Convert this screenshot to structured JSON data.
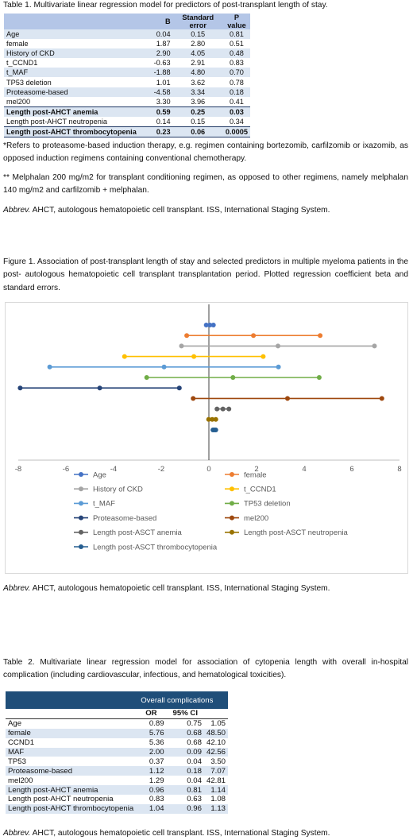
{
  "table1": {
    "caption": "Table 1. Multivariate linear regression model for predictors of post-transplant length of stay.",
    "headers": [
      "",
      "B",
      "Standard error",
      "P value"
    ],
    "rows": [
      [
        "Age",
        "0.04",
        "0.15",
        "0.81"
      ],
      [
        "female",
        "1.87",
        "2.80",
        "0.51"
      ],
      [
        "History of CKD",
        "2.90",
        "4.05",
        "0.48"
      ],
      [
        "t_CCND1",
        "-0.63",
        "2.91",
        "0.83"
      ],
      [
        "t_MAF",
        "-1.88",
        "4.80",
        "0.70"
      ],
      [
        "TP53 deletion",
        "1.01",
        "3.62",
        "0.78"
      ],
      [
        "Proteasome-based",
        "-4.58",
        "3.34",
        "0.18"
      ],
      [
        "mel200",
        "3.30",
        "3.96",
        "0.41"
      ],
      [
        "Length post-AHCT anemia",
        "0.59",
        "0.25",
        "0.03"
      ],
      [
        "Length post-AHCT neutropenia",
        "0.14",
        "0.15",
        "0.34"
      ],
      [
        "Length post-AHCT thrombocytopenia",
        "0.23",
        "0.06",
        "0.0005"
      ]
    ],
    "footnote1": "*Refers to proteasome-based induction therapy, e.g. regimen containing bortezomib, carfilzomib or ixazomib, as opposed induction regimens containing conventional chemotherapy.",
    "footnote2": "** Melphalan 200 mg/m2 for transplant conditioning regimen, as opposed to other regimens, namely melphalan 140 mg/m2 and carfilzomib + melphalan.",
    "abbrev_label": "Abbrev.",
    "abbrev_text": " AHCT, autologous hematopoietic cell transplant. ISS, International Staging System."
  },
  "figure1": {
    "caption": "Figure 1. Association of post-transplant length of stay and selected predictors in multiple myeloma patients in the post- autologous hematopoietic cell transplant transplantation period. Plotted regression coefficient beta and standard errors.",
    "abbrev_label": "Abbrev.",
    "abbrev_text": " AHCT, autologous hematopoietic cell transplant. ISS, International Staging System."
  },
  "chart_data": {
    "type": "scatter",
    "title": "",
    "xlabel": "",
    "ylabel": "",
    "xlim": [
      -8,
      8
    ],
    "xticks": [
      -8,
      -6,
      -4,
      -2,
      0,
      2,
      4,
      6,
      8
    ],
    "grid": false,
    "legend_placement": "bottom",
    "series": [
      {
        "name": "Age",
        "color": "#4472c4",
        "points": [
          -0.11,
          0.04,
          0.19
        ]
      },
      {
        "name": "female",
        "color": "#ed7d31",
        "points": [
          -0.93,
          1.87,
          4.67
        ]
      },
      {
        "name": "History of CKD",
        "color": "#a5a5a5",
        "points": [
          -1.15,
          2.9,
          6.95
        ]
      },
      {
        "name": "t_CCND1",
        "color": "#ffc000",
        "points": [
          -3.54,
          -0.63,
          2.28
        ]
      },
      {
        "name": "t_MAF",
        "color": "#5b9bd5",
        "points": [
          -6.68,
          -1.88,
          2.92
        ]
      },
      {
        "name": "TP53 deletion",
        "color": "#70ad47",
        "points": [
          -2.61,
          1.01,
          4.63
        ]
      },
      {
        "name": "Proteasome-based",
        "color": "#264478",
        "points": [
          -7.92,
          -4.58,
          -1.24
        ]
      },
      {
        "name": "mel200",
        "color": "#9e480e",
        "points": [
          -0.66,
          3.3,
          7.26
        ]
      },
      {
        "name": "Length post-ASCT anemia",
        "color": "#636363",
        "points": [
          0.34,
          0.59,
          0.84
        ]
      },
      {
        "name": "Length post-ASCT neutropenia",
        "color": "#997300",
        "points": [
          -0.01,
          0.14,
          0.29
        ]
      },
      {
        "name": "Length post-ASCT thrombocytopenia",
        "color": "#255e91",
        "points": [
          0.17,
          0.23,
          0.29
        ]
      }
    ]
  },
  "table2": {
    "caption": "Table 2. Multivariate linear regression model for association of cytopenia length with overall in-hospital complication (including cardiovascular, infectious, and hematological toxicities).",
    "group_header": "Overall complications",
    "headers": [
      "",
      "OR",
      "95% CI",
      ""
    ],
    "rows": [
      [
        "Age",
        "0.89",
        "0.75",
        "1.05"
      ],
      [
        "female",
        "5.76",
        "0.68",
        "48.50"
      ],
      [
        "CCND1",
        "5.36",
        "0.68",
        "42.10"
      ],
      [
        "MAF",
        "2.00",
        "0.09",
        "42.56"
      ],
      [
        "TP53",
        "0.37",
        "0.04",
        "3.50"
      ],
      [
        "Proteasome-based",
        "1.12",
        "0.18",
        "7.07"
      ],
      [
        "mel200",
        "1.29",
        "0.04",
        "42.81"
      ],
      [
        "Length post-AHCT anemia",
        "0.96",
        "0.81",
        "1.14"
      ],
      [
        "Length post-AHCT neutropenia",
        "0.83",
        "0.63",
        "1.08"
      ],
      [
        "Length post-AHCT thrombocytopenia",
        "1.04",
        "0.96",
        "1.13"
      ]
    ],
    "abbrev_label": "Abbrev.",
    "abbrev_text": " AHCT, autologous hematopoietic cell transplant. ISS, International Staging System."
  }
}
